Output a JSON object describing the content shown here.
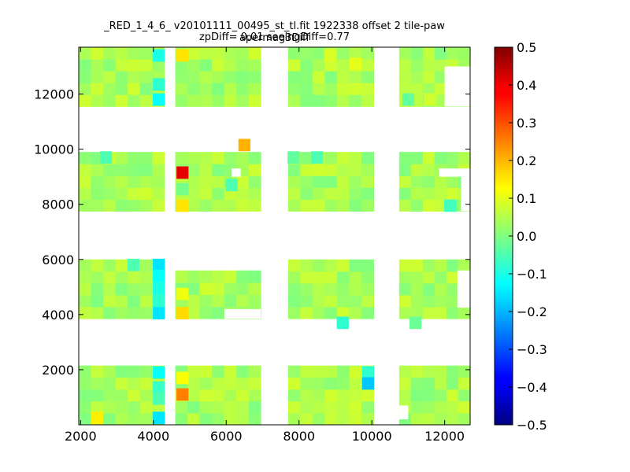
{
  "chart_data": {
    "type": "heatmap",
    "title": "_RED_1_4_6_ v20101111_00495_st_tl.fit 1922338 offset 2 tile-paw apermag3Diff",
    "subtitle": "zpDiff= 0.01 seeingDiff=0.77",
    "xlabel": "",
    "ylabel": "",
    "xlim": [
      1950,
      12700
    ],
    "ylim": [
      0,
      13700
    ],
    "x_ticks": [
      2000,
      4000,
      6000,
      8000,
      10000,
      12000
    ],
    "y_ticks": [
      2000,
      4000,
      6000,
      8000,
      10000,
      12000
    ],
    "cell_width": 330,
    "cell_height": 450,
    "colorbar": {
      "colormap": "jet",
      "vmin": -0.5,
      "vmax": 0.5,
      "ticks": [
        "0.5",
        "0.4",
        "0.3",
        "0.2",
        "0.1",
        "0.0",
        "−0.1",
        "−0.2",
        "−0.3",
        "−0.4",
        "−0.5"
      ]
    },
    "grid": false,
    "background_regions": [
      {
        "x0": 1950,
        "x1": 4300,
        "y0": 0,
        "y1": 2150
      },
      {
        "x0": 4600,
        "x1": 6950,
        "y0": 0,
        "y1": 2150
      },
      {
        "x0": 7700,
        "x1": 10050,
        "y0": 0,
        "y1": 2150
      },
      {
        "x0": 10750,
        "x1": 12700,
        "y0": 0,
        "y1": 2150
      },
      {
        "x0": 1950,
        "x1": 4300,
        "y0": 3850,
        "y1": 6000
      },
      {
        "x0": 4600,
        "x1": 6950,
        "y0": 3850,
        "y1": 5600
      },
      {
        "x0": 7700,
        "x1": 10050,
        "y0": 3850,
        "y1": 6000
      },
      {
        "x0": 10750,
        "x1": 12700,
        "y0": 3850,
        "y1": 6000
      },
      {
        "x0": 1950,
        "x1": 4300,
        "y0": 7750,
        "y1": 9900
      },
      {
        "x0": 4600,
        "x1": 6950,
        "y0": 7750,
        "y1": 9900
      },
      {
        "x0": 7700,
        "x1": 10050,
        "y0": 7750,
        "y1": 9900
      },
      {
        "x0": 10750,
        "x1": 12700,
        "y0": 7750,
        "y1": 9900
      },
      {
        "x0": 1950,
        "x1": 4300,
        "y0": 11550,
        "y1": 13700
      },
      {
        "x0": 4600,
        "x1": 6950,
        "y0": 11550,
        "y1": 13700
      },
      {
        "x0": 7700,
        "x1": 10050,
        "y0": 11550,
        "y1": 13700
      },
      {
        "x0": 10750,
        "x1": 12700,
        "y0": 11550,
        "y1": 13700
      }
    ],
    "cells": [
      {
        "x": 4800,
        "y": 13400,
        "value": 0.15
      },
      {
        "x": 4150,
        "y": 13400,
        "value": -0.1
      },
      {
        "x": 4150,
        "y": 12350,
        "value": -0.08
      },
      {
        "x": 4150,
        "y": 11800,
        "value": -0.12
      },
      {
        "x": 8850,
        "y": 13400,
        "value": 0.09
      },
      {
        "x": 9550,
        "y": 13100,
        "value": 0.1
      },
      {
        "x": 11000,
        "y": 11800,
        "value": -0.03
      },
      {
        "x": 11600,
        "y": 11800,
        "value": 0.08
      },
      {
        "x": 4800,
        "y": 9150,
        "value": 0.4
      },
      {
        "x": 6500,
        "y": 10150,
        "value": 0.2
      },
      {
        "x": 4800,
        "y": 7950,
        "value": 0.15
      },
      {
        "x": 4800,
        "y": 8550,
        "value": -0.01
      },
      {
        "x": 6150,
        "y": 8700,
        "value": -0.05
      },
      {
        "x": 2700,
        "y": 9700,
        "value": -0.05
      },
      {
        "x": 7850,
        "y": 9700,
        "value": -0.03
      },
      {
        "x": 8500,
        "y": 9700,
        "value": -0.05
      },
      {
        "x": 12150,
        "y": 7950,
        "value": -0.06
      },
      {
        "x": 3450,
        "y": 5800,
        "value": -0.05
      },
      {
        "x": 4150,
        "y": 5800,
        "value": -0.15
      },
      {
        "x": 4150,
        "y": 5400,
        "value": -0.12
      },
      {
        "x": 4150,
        "y": 4950,
        "value": -0.1
      },
      {
        "x": 4150,
        "y": 4500,
        "value": -0.08
      },
      {
        "x": 4150,
        "y": 4050,
        "value": -0.15
      },
      {
        "x": 4800,
        "y": 4050,
        "value": 0.16
      },
      {
        "x": 4800,
        "y": 4750,
        "value": 0.11
      },
      {
        "x": 9200,
        "y": 3700,
        "value": -0.08
      },
      {
        "x": 11200,
        "y": 3700,
        "value": -0.02
      },
      {
        "x": 4150,
        "y": 1900,
        "value": -0.12
      },
      {
        "x": 4150,
        "y": 1350,
        "value": -0.07
      },
      {
        "x": 4150,
        "y": 950,
        "value": -0.05
      },
      {
        "x": 4150,
        "y": 250,
        "value": -0.15
      },
      {
        "x": 4800,
        "y": 1100,
        "value": 0.25
      },
      {
        "x": 4800,
        "y": 1700,
        "value": 0.12
      },
      {
        "x": 9900,
        "y": 1900,
        "value": -0.08
      },
      {
        "x": 9900,
        "y": 1500,
        "value": -0.18
      },
      {
        "x": 2450,
        "y": 250,
        "value": 0.14
      },
      {
        "x": 9550,
        "y": 1900,
        "value": 0.08
      }
    ]
  }
}
